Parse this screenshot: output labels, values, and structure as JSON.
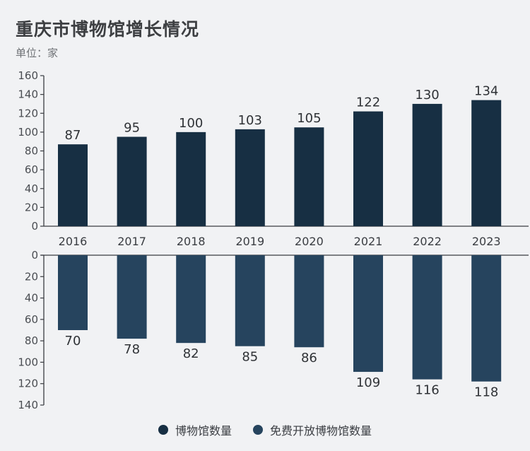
{
  "title": "重庆市博物馆增长情况",
  "unit": "单位：家",
  "colors": {
    "top": "#172f43",
    "bottom": "#26445e",
    "axis": "#3a3d42"
  },
  "chart_data": {
    "type": "bar",
    "title": "重庆市博物馆增长情况",
    "subtitle": "单位：家",
    "categories": [
      "2016",
      "2017",
      "2018",
      "2019",
      "2020",
      "2021",
      "2022",
      "2023"
    ],
    "series": [
      {
        "name": "博物馆数量",
        "values": [
          87,
          95,
          100,
          103,
          105,
          122,
          130,
          134
        ]
      },
      {
        "name": "免费开放博物馆数量",
        "values": [
          70,
          78,
          82,
          85,
          86,
          109,
          116,
          118
        ]
      }
    ],
    "top_axis": {
      "ylim": [
        0,
        160
      ],
      "ticks": [
        "0",
        "20",
        "40",
        "60",
        "80",
        "100",
        "120",
        "140",
        "160"
      ]
    },
    "bottom_axis": {
      "ylim": [
        0,
        140
      ],
      "ticks": [
        "0",
        "20",
        "40",
        "60",
        "80",
        "100",
        "120",
        "140"
      ]
    },
    "legend_position": "bottom-center",
    "grid": false
  }
}
